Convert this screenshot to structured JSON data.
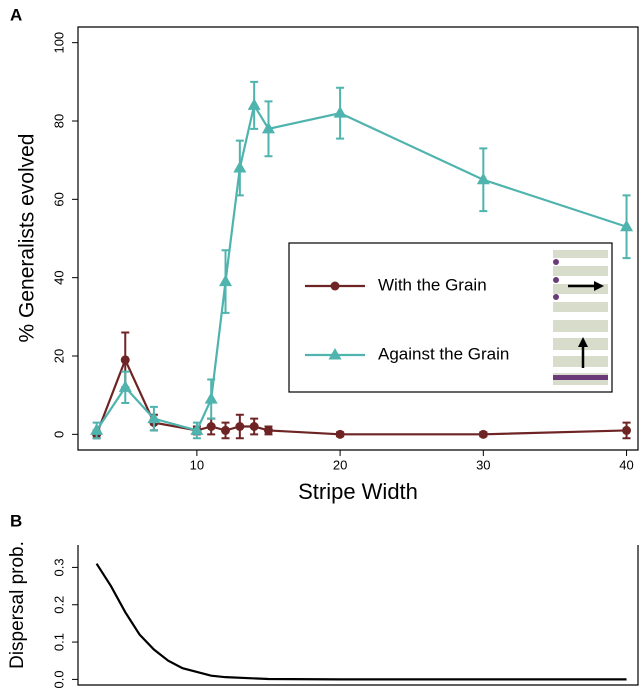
{
  "chart_data": [
    {
      "type": "line",
      "panel": "A",
      "y_label": "% Generalists evolved",
      "x_label": "Stripe Width",
      "x": [
        3,
        5,
        7,
        10,
        11,
        12,
        13,
        14,
        15,
        20,
        30,
        40
      ],
      "xlim": [
        1.7,
        40.8
      ],
      "xticks": [
        10,
        20,
        30,
        40
      ],
      "ylim": [
        -4,
        104
      ],
      "yticks": [
        0,
        20,
        40,
        60,
        80,
        100
      ],
      "series": [
        {
          "name": "With the Grain",
          "color": "#6e2424",
          "marker": "circle",
          "values": [
            0,
            19,
            3,
            1,
            2,
            1,
            2,
            2,
            1,
            0,
            0,
            1
          ],
          "errors": [
            1,
            7,
            2,
            1,
            2,
            2,
            3,
            2,
            1,
            0.5,
            0.5,
            2
          ]
        },
        {
          "name": "Against the Grain",
          "color": "#4fb3ae",
          "marker": "triangle",
          "values": [
            1,
            12,
            4,
            1,
            9,
            39,
            68,
            84,
            78,
            82,
            65,
            53
          ],
          "errors": [
            2,
            4,
            3,
            2,
            5,
            8,
            7,
            6,
            7,
            6.5,
            8,
            8
          ]
        }
      ]
    },
    {
      "type": "line",
      "panel": "B",
      "y_label": "Dispersal prob.",
      "x": [
        3,
        4,
        5,
        6,
        7,
        8,
        9,
        10,
        11,
        12,
        15,
        20,
        30,
        40
      ],
      "xlim": [
        1.7,
        40.8
      ],
      "ylim": [
        -0.015,
        0.36
      ],
      "yticks": [
        {
          "value": 0,
          "label": "0.0"
        },
        0.1,
        0.2,
        0.3
      ],
      "series": [
        {
          "color": "#000000",
          "values": [
            0.31,
            0.25,
            0.18,
            0.12,
            0.08,
            0.05,
            0.03,
            0.02,
            0.01,
            0.006,
            0.001,
            0,
            0,
            0
          ]
        }
      ]
    }
  ]
}
